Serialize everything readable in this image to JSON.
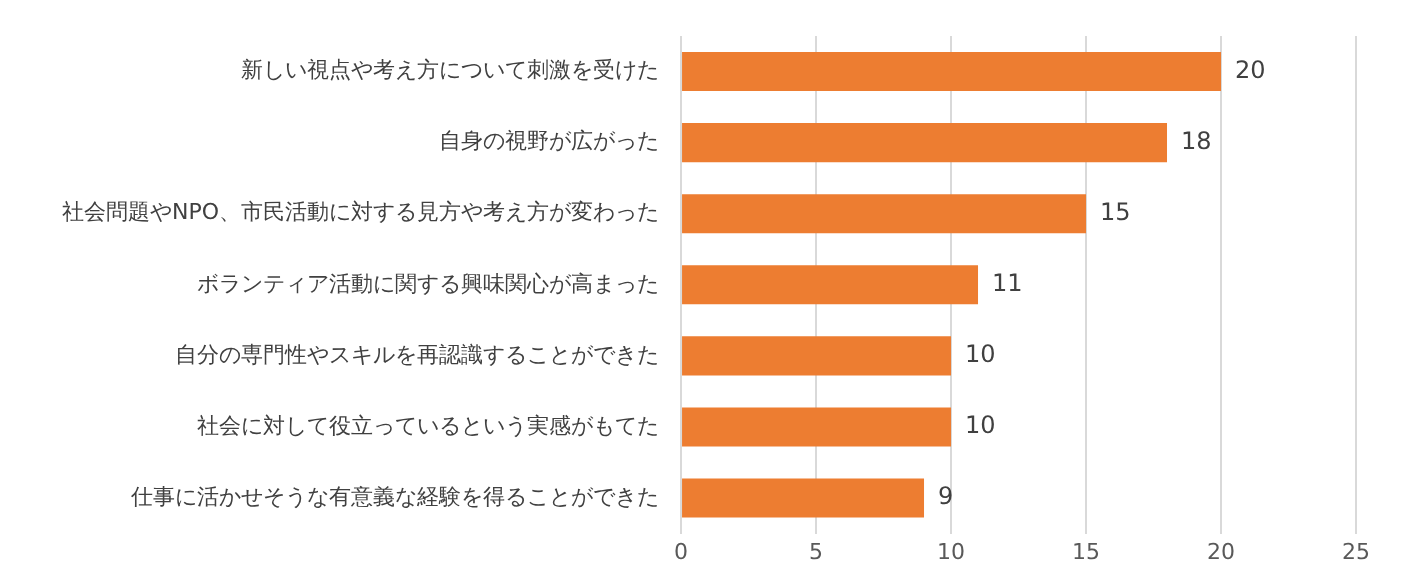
{
  "chart_data": {
    "type": "bar",
    "orientation": "horizontal",
    "categories": [
      "新しい視点や考え方について刺激を受けた",
      "自身の視野が広がった",
      "社会問題やNPO、市民活動に対する見方や考え方が変わった",
      "ボランティア活動に関する興味関心が高まった",
      "自分の専門性やスキルを再認識することができた",
      "社会に対して役立っているという実感がもてた",
      "仕事に活かせそうな有意義な経験を得ることができた"
    ],
    "values": [
      20,
      18,
      15,
      11,
      10,
      10,
      9
    ],
    "color": "#ed7d31",
    "xlim": [
      0,
      25
    ],
    "xticks": [
      0,
      5,
      10,
      15,
      20,
      25
    ],
    "grid": "x",
    "legend": false,
    "data_labels": true
  }
}
